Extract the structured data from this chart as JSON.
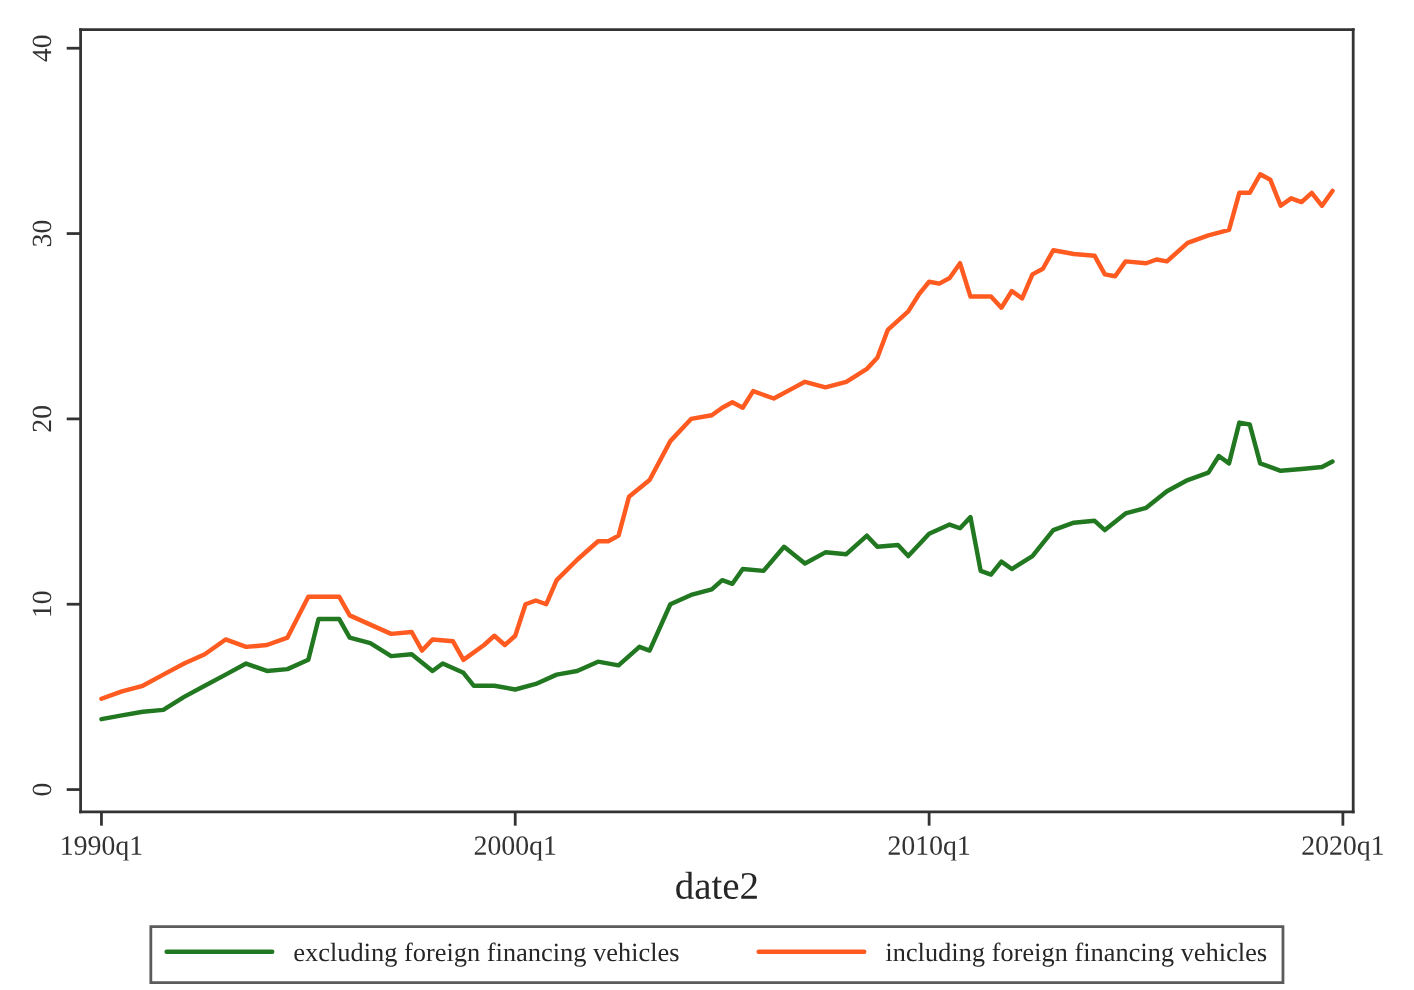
{
  "chart_data": {
    "type": "line",
    "xlabel": "date2",
    "xlim": [
      "1989-07",
      "2020-04"
    ],
    "ylim": [
      -1.2,
      41
    ],
    "xticks": [
      {
        "value": "1990-01",
        "label": "1990q1"
      },
      {
        "value": "2000-01",
        "label": "2000q1"
      },
      {
        "value": "2010-01",
        "label": "2010q1"
      },
      {
        "value": "2020-01",
        "label": "2020q1"
      }
    ],
    "yticks": [
      0,
      10,
      20,
      30,
      40
    ],
    "grid": false,
    "legend": "bottom",
    "marker": "none",
    "line_style": "solid",
    "series": [
      {
        "name": "excluding foreign financing vehicles",
        "color": "#217821",
        "x": [
          "1990-01",
          "1990-07",
          "1991-01",
          "1991-07",
          "1992-01",
          "1992-07",
          "1993-01",
          "1993-07",
          "1994-01",
          "1994-07",
          "1995-01",
          "1995-04",
          "1995-10",
          "1996-01",
          "1996-07",
          "1997-01",
          "1997-07",
          "1998-01",
          "1998-04",
          "1998-10",
          "1999-01",
          "1999-07",
          "2000-01",
          "2000-07",
          "2001-01",
          "2001-07",
          "2002-01",
          "2002-07",
          "2003-01",
          "2003-04",
          "2003-10",
          "2004-04",
          "2004-10",
          "2005-01",
          "2005-04",
          "2005-07",
          "2006-01",
          "2006-07",
          "2007-01",
          "2007-07",
          "2008-01",
          "2008-07",
          "2008-10",
          "2009-04",
          "2009-07",
          "2010-01",
          "2010-07",
          "2010-10",
          "2011-01",
          "2011-04",
          "2011-07",
          "2011-10",
          "2012-01",
          "2012-07",
          "2013-01",
          "2013-07",
          "2014-01",
          "2014-04",
          "2014-10",
          "2015-04",
          "2015-10",
          "2016-04",
          "2016-10",
          "2017-01",
          "2017-04",
          "2017-07",
          "2017-10",
          "2018-01",
          "2018-07",
          "2019-01",
          "2019-07",
          "2019-10"
        ],
        "values": [
          3.8,
          4.0,
          4.2,
          4.3,
          5.0,
          5.6,
          6.2,
          6.8,
          6.4,
          6.5,
          7.0,
          9.2,
          9.2,
          8.2,
          7.9,
          7.2,
          7.3,
          6.4,
          6.8,
          6.3,
          5.6,
          5.6,
          5.4,
          5.7,
          6.2,
          6.4,
          6.9,
          6.7,
          7.7,
          7.5,
          10.0,
          10.5,
          10.8,
          11.3,
          11.1,
          11.9,
          11.8,
          13.1,
          12.2,
          12.8,
          12.7,
          13.7,
          13.1,
          13.2,
          12.6,
          13.8,
          14.3,
          14.1,
          14.7,
          11.8,
          11.6,
          12.3,
          11.9,
          12.6,
          14.0,
          14.4,
          14.5,
          14.0,
          14.9,
          15.2,
          16.1,
          16.7,
          17.1,
          18.0,
          17.6,
          19.8,
          19.7,
          17.6,
          17.2,
          17.3,
          17.4,
          17.7
        ]
      },
      {
        "name": "including foreign financing vehicles",
        "color": "#ff5a1f",
        "x": [
          "1990-01",
          "1990-07",
          "1991-01",
          "1991-07",
          "1992-01",
          "1992-07",
          "1993-01",
          "1993-07",
          "1994-01",
          "1994-07",
          "1995-01",
          "1995-10",
          "1996-01",
          "1996-07",
          "1997-01",
          "1997-07",
          "1997-10",
          "1998-01",
          "1998-07",
          "1998-10",
          "1999-04",
          "1999-07",
          "1999-10",
          "2000-01",
          "2000-04",
          "2000-07",
          "2000-10",
          "2001-01",
          "2001-07",
          "2002-01",
          "2002-04",
          "2002-07",
          "2002-10",
          "2003-04",
          "2003-10",
          "2004-04",
          "2004-10",
          "2005-01",
          "2005-04",
          "2005-07",
          "2005-10",
          "2006-04",
          "2006-10",
          "2007-01",
          "2007-07",
          "2008-01",
          "2008-07",
          "2008-10",
          "2009-01",
          "2009-07",
          "2009-10",
          "2010-01",
          "2010-04",
          "2010-07",
          "2010-10",
          "2011-01",
          "2011-07",
          "2011-10",
          "2012-01",
          "2012-04",
          "2012-07",
          "2012-10",
          "2013-01",
          "2013-07",
          "2014-01",
          "2014-04",
          "2014-07",
          "2014-10",
          "2015-04",
          "2015-07",
          "2015-10",
          "2016-04",
          "2016-10",
          "2017-04",
          "2017-07",
          "2017-10",
          "2018-01",
          "2018-04",
          "2018-07",
          "2018-10",
          "2019-01",
          "2019-04",
          "2019-07",
          "2019-10"
        ],
        "values": [
          4.9,
          5.3,
          5.6,
          6.2,
          6.8,
          7.3,
          8.1,
          7.7,
          7.8,
          8.2,
          10.4,
          10.4,
          9.4,
          8.9,
          8.4,
          8.5,
          7.5,
          8.1,
          8.0,
          7.0,
          7.8,
          8.3,
          7.8,
          8.3,
          10.0,
          10.2,
          10.0,
          11.3,
          12.4,
          13.4,
          13.4,
          13.7,
          15.8,
          16.7,
          18.8,
          20.0,
          20.2,
          20.6,
          20.9,
          20.6,
          21.5,
          21.1,
          21.7,
          22.0,
          21.7,
          22.0,
          22.7,
          23.3,
          24.8,
          25.8,
          26.7,
          27.4,
          27.3,
          27.6,
          28.4,
          26.6,
          26.6,
          26.0,
          26.9,
          26.5,
          27.8,
          28.1,
          29.1,
          28.9,
          28.8,
          27.8,
          27.7,
          28.5,
          28.4,
          28.6,
          28.5,
          29.5,
          29.9,
          30.2,
          32.2,
          32.2,
          33.2,
          32.9,
          31.5,
          31.9,
          31.7,
          32.2,
          31.5,
          32.3
        ]
      }
    ]
  }
}
